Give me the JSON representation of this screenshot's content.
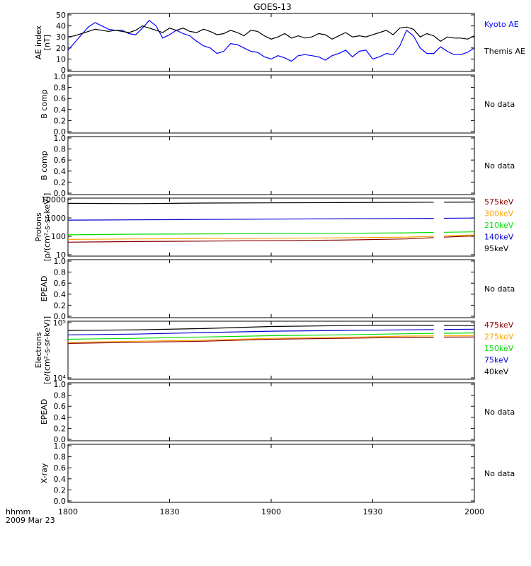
{
  "title": "GOES-13",
  "footer": {
    "time_label": "hhmm",
    "date_label": "2009 Mar 23"
  },
  "x_ticks": [
    "1800",
    "1830",
    "1900",
    "1930",
    "2000"
  ],
  "chart_data": [
    {
      "type": "line",
      "ylabel": "AE index",
      "ylabel2": "[nT]",
      "ylim": [
        0,
        50
      ],
      "y_ticks": [
        "0",
        "10",
        "20",
        "30",
        "40",
        "50"
      ],
      "x_range": [
        "18:00",
        "20:00"
      ],
      "series": [
        {
          "name": "Kyoto AE",
          "color": "#0000ff",
          "x": [
            0,
            2,
            4,
            6,
            8,
            10,
            12,
            14,
            16,
            18,
            20,
            22,
            24,
            26,
            28,
            30,
            32,
            34,
            36,
            38,
            40,
            42,
            44,
            46,
            48,
            50,
            52,
            54,
            56,
            58,
            60,
            62,
            64,
            66,
            68,
            70,
            72,
            74,
            76,
            78,
            80,
            82,
            84,
            86,
            88,
            90,
            92,
            94,
            96,
            98,
            100,
            102,
            104,
            106,
            108,
            110,
            112,
            114,
            116,
            118,
            120
          ],
          "y": [
            18,
            25,
            32,
            39,
            43,
            40,
            37,
            36,
            36,
            33,
            32,
            38,
            45,
            40,
            29,
            32,
            36,
            33,
            31,
            26,
            22,
            20,
            15,
            17,
            24,
            23,
            20,
            17,
            16,
            12,
            10,
            13,
            11,
            8,
            13,
            14,
            13,
            12,
            9,
            13,
            15,
            18,
            12,
            17,
            18,
            10,
            12,
            15,
            14,
            22,
            36,
            31,
            20,
            15,
            15,
            21,
            17,
            14,
            14,
            16,
            20
          ]
        },
        {
          "name": "Themis AE",
          "color": "#000000",
          "x": [
            0,
            2,
            4,
            6,
            8,
            10,
            12,
            14,
            16,
            18,
            20,
            22,
            24,
            26,
            28,
            30,
            32,
            34,
            36,
            38,
            40,
            42,
            44,
            46,
            48,
            50,
            52,
            54,
            56,
            58,
            60,
            62,
            64,
            66,
            68,
            70,
            72,
            74,
            76,
            78,
            80,
            82,
            84,
            86,
            88,
            90,
            92,
            94,
            96,
            98,
            100,
            102,
            104,
            106,
            108,
            110,
            112,
            114,
            116,
            118,
            120
          ],
          "y": [
            30,
            31,
            33,
            35,
            37,
            36,
            35,
            36,
            35,
            34,
            36,
            40,
            38,
            36,
            34,
            38,
            36,
            38,
            35,
            34,
            37,
            35,
            32,
            33,
            36,
            34,
            31,
            36,
            35,
            31,
            28,
            30,
            33,
            29,
            31,
            29,
            30,
            33,
            32,
            28,
            31,
            34,
            30,
            31,
            30,
            32,
            34,
            36,
            32,
            38,
            39,
            37,
            30,
            33,
            31,
            26,
            30,
            29,
            29,
            28,
            31
          ]
        }
      ]
    },
    {
      "type": "line",
      "ylabel": "B comp",
      "ylim": [
        0,
        1
      ],
      "y_ticks": [
        "0.0",
        "0.2",
        "0.4",
        "0.6",
        "0.8",
        "1.0"
      ],
      "status": "No data",
      "series": []
    },
    {
      "type": "line",
      "ylabel": "B comp",
      "ylim": [
        0,
        1
      ],
      "y_ticks": [
        "0.0",
        "0.2",
        "0.4",
        "0.6",
        "0.8",
        "1.0"
      ],
      "status": "No data",
      "series": []
    },
    {
      "type": "line",
      "ylabel": "Protons",
      "ylabel2": "[p/(cm²-s-sr-keV)]",
      "y_scale": "log",
      "ylim": [
        10,
        10000
      ],
      "y_ticks": [
        "10",
        "100",
        "1000",
        "10000"
      ],
      "gap": [
        108,
        111
      ],
      "series": [
        {
          "name": "575keV",
          "color": "#8b0000",
          "x": [
            0,
            20,
            40,
            60,
            80,
            100,
            120
          ],
          "y": [
            48,
            52,
            55,
            58,
            62,
            72,
            105
          ]
        },
        {
          "name": "300keV",
          "color": "#ffa500",
          "x": [
            0,
            20,
            40,
            60,
            80,
            100,
            120
          ],
          "y": [
            68,
            72,
            75,
            78,
            82,
            90,
            118
          ]
        },
        {
          "name": "210keV",
          "color": "#00dd00",
          "x": [
            0,
            20,
            40,
            60,
            80,
            100,
            120
          ],
          "y": [
            120,
            130,
            135,
            140,
            145,
            155,
            175
          ]
        },
        {
          "name": "140keV",
          "color": "#0000cd",
          "x": [
            0,
            20,
            40,
            60,
            80,
            100,
            120
          ],
          "y": [
            760,
            790,
            820,
            860,
            900,
            930,
            980
          ]
        },
        {
          "name": "95keV",
          "color": "#000000",
          "x": [
            0,
            20,
            40,
            60,
            80,
            100,
            120
          ],
          "y": [
            6200,
            6000,
            6400,
            6600,
            6800,
            7000,
            7300
          ]
        }
      ]
    },
    {
      "type": "line",
      "ylabel": "EPEAD",
      "ylim": [
        0,
        1
      ],
      "y_ticks": [
        "0.0",
        "0.2",
        "0.4",
        "0.6",
        "0.8",
        "1.0"
      ],
      "status": "No data",
      "series": []
    },
    {
      "type": "line",
      "ylabel": "Electrons",
      "ylabel2": "[e/(cm²-s-sr-keV)]",
      "y_scale": "log",
      "ylim": [
        10000,
        100000
      ],
      "y_ticks": [
        "10⁴",
        "10⁵"
      ],
      "gap": [
        108,
        111
      ],
      "series": [
        {
          "name": "475keV",
          "color": "#8b0000",
          "x": [
            0,
            20,
            40,
            60,
            80,
            100,
            120
          ],
          "y": [
            42000,
            44000,
            46000,
            50000,
            52000,
            54000,
            55000
          ]
        },
        {
          "name": "275keV",
          "color": "#ffa500",
          "x": [
            0,
            20,
            40,
            60,
            80,
            100,
            120
          ],
          "y": [
            44000,
            46000,
            48000,
            52000,
            54000,
            57000,
            58000
          ]
        },
        {
          "name": "150keV",
          "color": "#00dd00",
          "x": [
            0,
            20,
            40,
            60,
            80,
            100,
            120
          ],
          "y": [
            50000,
            52000,
            55000,
            58000,
            60000,
            63000,
            65000
          ]
        },
        {
          "name": "75keV",
          "color": "#0000cd",
          "x": [
            0,
            20,
            40,
            60,
            80,
            100,
            120
          ],
          "y": [
            60000,
            62000,
            66000,
            70000,
            72000,
            74000,
            76000
          ]
        },
        {
          "name": "40keV",
          "color": "#000000",
          "x": [
            0,
            20,
            40,
            60,
            80,
            100,
            120
          ],
          "y": [
            72000,
            74000,
            78000,
            85000,
            88000,
            90000,
            88000
          ]
        }
      ]
    },
    {
      "type": "line",
      "ylabel": "EPEAD",
      "ylim": [
        0,
        1
      ],
      "y_ticks": [
        "0.0",
        "0.2",
        "0.4",
        "0.6",
        "0.8",
        "1.0"
      ],
      "status": "No data",
      "series": []
    },
    {
      "type": "line",
      "ylabel": "X-ray",
      "ylim": [
        0,
        1
      ],
      "y_ticks": [
        "0.0",
        "0.2",
        "0.4",
        "0.6",
        "0.8",
        "1.0"
      ],
      "status": "No data",
      "series": []
    }
  ]
}
